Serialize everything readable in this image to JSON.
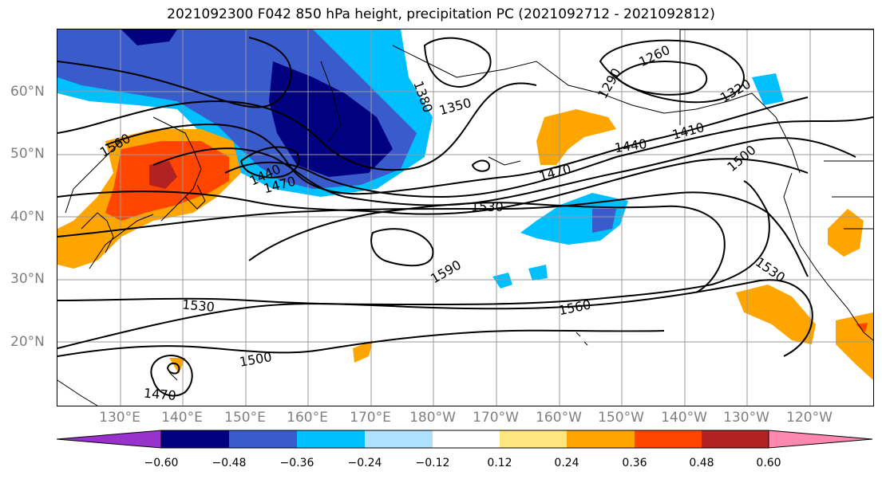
{
  "title": "2021092300 F042 850 hPa height, precipitation PC (2021092712 - 2021092812)",
  "map": {
    "projection": "cylindrical",
    "lon_labels": [
      "130°E",
      "140°E",
      "150°E",
      "160°E",
      "170°E",
      "180°W",
      "170°W",
      "160°W",
      "150°W",
      "140°W",
      "130°W",
      "120°W"
    ],
    "lat_labels": [
      "60°N",
      "50°N",
      "40°N",
      "30°N",
      "20°N"
    ],
    "contour_labels": [
      "1560",
      "1470",
      "1440",
      "1380",
      "1350",
      "1290",
      "1260",
      "1320",
      "1410",
      "1440",
      "1500",
      "1470",
      "1530",
      "1590",
      "1530",
      "1560",
      "1530",
      "1500",
      "1470"
    ],
    "gridlines": true,
    "coastlines": true
  },
  "colorbar": {
    "ticks": [
      "−0.60",
      "−0.48",
      "−0.36",
      "−0.24",
      "−0.12",
      "0.12",
      "0.24",
      "0.36",
      "0.48",
      "0.60"
    ],
    "colors": [
      "#9932cc",
      "#000080",
      "#3a5bcc",
      "#00bfff",
      "#b0e0ff",
      "#ffffff",
      "#ffe680",
      "#ffa500",
      "#ff4500",
      "#b22222",
      "#ff88b0"
    ],
    "extend": "both"
  },
  "shading": {
    "dark_blue": "#000080",
    "blue": "#3a5bcc",
    "light_blue": "#00bfff",
    "orange": "#ffa500",
    "red_orange": "#ff4500",
    "dark_red": "#b22222",
    "yellow": "#ffe680"
  }
}
